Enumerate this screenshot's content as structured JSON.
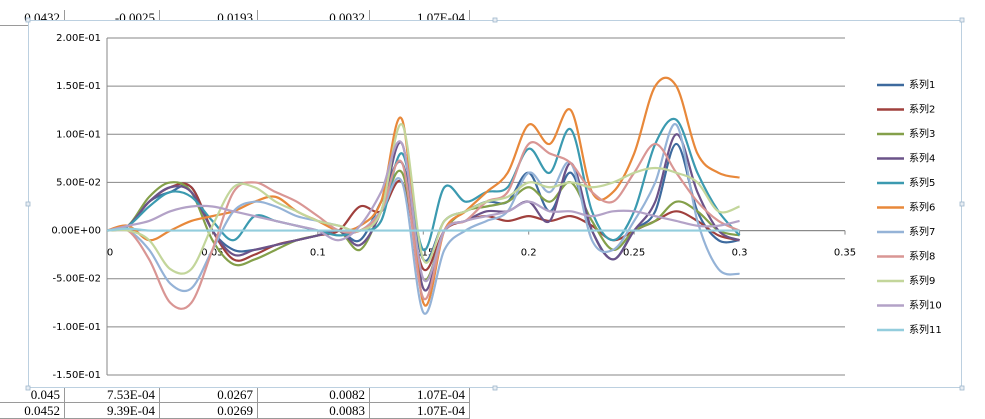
{
  "spreadsheet": {
    "rows": [
      [
        "0.0432",
        "-0.0025",
        "0.0193",
        "0.0032",
        "1.07E-04"
      ],
      [
        "0.045",
        "7.53E-04",
        "0.0267",
        "0.0082",
        "1.07E-04"
      ],
      [
        "0.0452",
        "9.39E-04",
        "0.0269",
        "0.0083",
        "1.07E-04"
      ]
    ]
  },
  "chart_data": {
    "type": "line",
    "smooth": true,
    "grid": true,
    "legend": "right",
    "xlim": [
      0,
      0.35
    ],
    "xticks": [
      0,
      0.05,
      0.1,
      0.15,
      0.2,
      0.25,
      0.3,
      0.35
    ],
    "ylim": [
      -0.15,
      0.2
    ],
    "yticks": [
      {
        "value": -0.15,
        "label": "-1.50E-01"
      },
      {
        "value": -0.1,
        "label": "-1.00E-01"
      },
      {
        "value": -0.05,
        "label": "-5.00E-02"
      },
      {
        "value": 0,
        "label": "0.00E+00"
      },
      {
        "value": 0.05,
        "label": "5.00E-02"
      },
      {
        "value": 0.1,
        "label": "1.00E-01"
      },
      {
        "value": 0.15,
        "label": "1.50E-01"
      },
      {
        "value": 0.2,
        "label": "2.00E-01"
      }
    ],
    "x": [
      0,
      0.01,
      0.02,
      0.03,
      0.04,
      0.05,
      0.06,
      0.07,
      0.08,
      0.09,
      0.1,
      0.11,
      0.12,
      0.13,
      0.14,
      0.15,
      0.16,
      0.17,
      0.18,
      0.19,
      0.2,
      0.21,
      0.22,
      0.23,
      0.24,
      0.25,
      0.26,
      0.27,
      0.28,
      0.29,
      0.3
    ],
    "series": [
      {
        "name": "系列1",
        "color": "#3d6a9e",
        "values": [
          0,
          0.005,
          0.03,
          0.04,
          0.045,
          0,
          -0.02,
          -0.02,
          -0.015,
          -0.01,
          -0.005,
          0,
          -0.01,
          0.03,
          0.07,
          -0.03,
          0.01,
          0.02,
          0.03,
          0.03,
          0.06,
          0.02,
          0.06,
          0,
          -0.03,
          0,
          0.02,
          0.09,
          0.02,
          -0.01,
          -0.01
        ]
      },
      {
        "name": "系列2",
        "color": "#a0403d",
        "values": [
          0,
          0.005,
          0.03,
          0.045,
          0.045,
          0,
          -0.03,
          -0.025,
          -0.015,
          -0.01,
          -0.005,
          0,
          0.025,
          0.02,
          0.05,
          -0.04,
          0,
          0.01,
          0.015,
          0.01,
          0.015,
          0.01,
          0.015,
          0.005,
          -0.01,
          0,
          0.01,
          0.02,
          0.01,
          -0.005,
          -0.01
        ]
      },
      {
        "name": "系列3",
        "color": "#84a04a",
        "values": [
          0,
          0.005,
          0.035,
          0.05,
          0.04,
          -0.01,
          -0.035,
          -0.03,
          -0.02,
          -0.01,
          -0.005,
          0,
          -0.02,
          0.02,
          0.06,
          -0.05,
          0,
          0.02,
          0.025,
          0.03,
          0.045,
          0.03,
          0.05,
          0.01,
          -0.02,
          0,
          0.01,
          0.03,
          0.02,
          0,
          -0.005
        ]
      },
      {
        "name": "系列4",
        "color": "#6b5389",
        "values": [
          0,
          0.005,
          0.03,
          0.045,
          0.04,
          0,
          -0.025,
          -0.02,
          -0.015,
          -0.01,
          -0.005,
          0,
          -0.015,
          0.02,
          0.09,
          -0.06,
          0,
          0.01,
          0.02,
          0.02,
          0.03,
          0.01,
          0.07,
          0,
          -0.03,
          0,
          0.03,
          0.1,
          0.04,
          0,
          -0.01
        ]
      },
      {
        "name": "系列5",
        "color": "#3b9ab0",
        "values": [
          0,
          0.005,
          0.025,
          0.04,
          0.035,
          0.01,
          -0.01,
          0.015,
          0.01,
          0.005,
          0,
          -0.005,
          0,
          0.01,
          0.08,
          -0.02,
          0.045,
          0.03,
          0.04,
          0.045,
          0.085,
          0.06,
          0.105,
          0.02,
          -0.01,
          0.02,
          0.09,
          0.115,
          0.06,
          0.02,
          -0.005
        ]
      },
      {
        "name": "系列6",
        "color": "#e8883a",
        "values": [
          0,
          0.005,
          -0.01,
          0,
          0.01,
          0.015,
          0.02,
          0.03,
          0.035,
          0.02,
          0.01,
          0,
          0.005,
          0.03,
          0.115,
          -0.075,
          0,
          0.02,
          0.04,
          0.06,
          0.11,
          0.09,
          0.125,
          0.04,
          0.04,
          0.08,
          0.15,
          0.15,
          0.08,
          0.06,
          0.055
        ]
      },
      {
        "name": "系列7",
        "color": "#95b3d7",
        "values": [
          0,
          0,
          -0.02,
          -0.055,
          -0.06,
          -0.02,
          0.02,
          0.03,
          0.025,
          0.015,
          0.01,
          0.005,
          0,
          0.02,
          0.05,
          -0.085,
          -0.02,
          0,
          0.01,
          0.02,
          0.06,
          0.04,
          0.07,
          -0.01,
          -0.02,
          0.01,
          0.05,
          0.11,
          0.01,
          -0.04,
          -0.045
        ]
      },
      {
        "name": "系列8",
        "color": "#d99694",
        "values": [
          0,
          0,
          -0.03,
          -0.075,
          -0.075,
          -0.02,
          0.04,
          0.05,
          0.04,
          0.03,
          0.015,
          0,
          0,
          0.02,
          0.07,
          -0.07,
          0,
          0.01,
          0.03,
          0.04,
          0.09,
          0.08,
          0.07,
          0.04,
          0.03,
          0.06,
          0.09,
          0.06,
          0.03,
          0.01,
          0
        ]
      },
      {
        "name": "系列9",
        "color": "#c3d69b",
        "values": [
          0,
          0,
          -0.01,
          -0.04,
          -0.04,
          0.005,
          0.045,
          0.045,
          0.03,
          0.02,
          0.01,
          0.005,
          0,
          0.02,
          0.11,
          -0.03,
          0.01,
          0.02,
          0.03,
          0.035,
          0.05,
          0.045,
          0.05,
          0.045,
          0.05,
          0.06,
          0.065,
          0.06,
          0.05,
          0.02,
          0.025
        ]
      },
      {
        "name": "系列10",
        "color": "#b3a2c7",
        "values": [
          0,
          0.005,
          0.01,
          0.02,
          0.025,
          0.025,
          0.02,
          0.015,
          0.01,
          0.005,
          0,
          -0.01,
          0.005,
          0.04,
          0.09,
          -0.05,
          0,
          0.01,
          0.015,
          0.02,
          0.03,
          0.02,
          0.02,
          0.015,
          0.02,
          0.02,
          0.015,
          0.01,
          0.005,
          0.005,
          0.01
        ]
      },
      {
        "name": "系列11",
        "color": "#93cddd",
        "values": [
          0,
          0.002,
          0,
          0,
          0,
          0,
          0,
          0,
          0,
          0,
          0,
          0,
          0,
          0,
          0,
          0,
          0,
          0,
          0,
          0,
          0,
          0,
          0,
          0,
          0,
          0,
          0,
          0,
          0,
          0,
          0
        ]
      }
    ]
  }
}
